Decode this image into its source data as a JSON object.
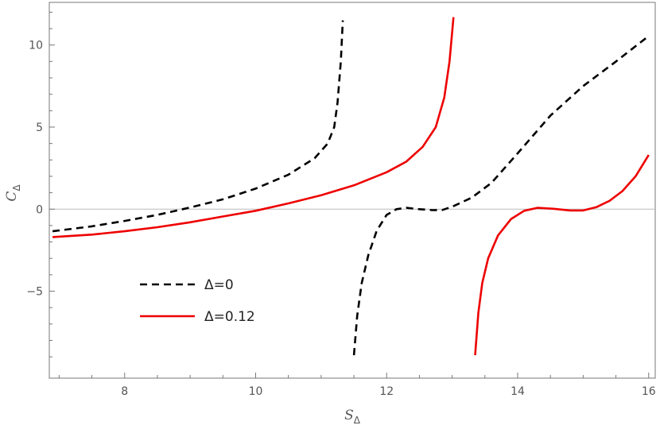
{
  "chart_data": {
    "type": "line",
    "xlabel": "S",
    "xlabel_sub": "Δ",
    "ylabel": "C",
    "ylabel_sub": "Δ",
    "xlim": [
      6.85,
      16.1
    ],
    "ylim": [
      -10.3,
      12.6
    ],
    "x_ticks": [
      8,
      10,
      12,
      14,
      16
    ],
    "y_ticks": [
      -5,
      0,
      5,
      10
    ],
    "zero_line": true,
    "frame": true,
    "legend_position": "lower-left",
    "series": [
      {
        "name": "Δ=0",
        "color": "#000000",
        "dash": "dashed",
        "segments": [
          [
            [
              6.9,
              -1.35
            ],
            [
              7.5,
              -1.05
            ],
            [
              8.0,
              -0.72
            ],
            [
              8.5,
              -0.35
            ],
            [
              9.0,
              0.1
            ],
            [
              9.5,
              0.6
            ],
            [
              10.0,
              1.25
            ],
            [
              10.5,
              2.1
            ],
            [
              10.9,
              3.1
            ],
            [
              11.1,
              4.0
            ],
            [
              11.2,
              5.0
            ],
            [
              11.25,
              6.5
            ],
            [
              11.3,
              9.0
            ],
            [
              11.33,
              11.5
            ]
          ],
          [
            [
              11.5,
              -8.9
            ],
            [
              11.55,
              -6.5
            ],
            [
              11.62,
              -4.5
            ],
            [
              11.72,
              -2.8
            ],
            [
              11.85,
              -1.3
            ],
            [
              12.0,
              -0.35
            ],
            [
              12.15,
              0.0
            ],
            [
              12.3,
              0.08
            ],
            [
              12.5,
              0.0
            ],
            [
              12.7,
              -0.06
            ],
            [
              12.85,
              -0.05
            ],
            [
              13.0,
              0.15
            ],
            [
              13.3,
              0.7
            ],
            [
              13.6,
              1.6
            ],
            [
              14.0,
              3.4
            ],
            [
              14.5,
              5.7
            ],
            [
              15.0,
              7.5
            ],
            [
              15.5,
              9.0
            ],
            [
              16.0,
              10.55
            ]
          ]
        ]
      },
      {
        "name": "Δ=0.12",
        "color": "#ee0000",
        "dash": "solid",
        "segments": [
          [
            [
              6.9,
              -1.7
            ],
            [
              7.5,
              -1.55
            ],
            [
              8.0,
              -1.35
            ],
            [
              8.5,
              -1.1
            ],
            [
              9.0,
              -0.8
            ],
            [
              9.5,
              -0.45
            ],
            [
              10.0,
              -0.1
            ],
            [
              10.5,
              0.35
            ],
            [
              11.0,
              0.85
            ],
            [
              11.5,
              1.45
            ],
            [
              12.0,
              2.25
            ],
            [
              12.3,
              2.9
            ],
            [
              12.55,
              3.8
            ],
            [
              12.75,
              5.0
            ],
            [
              12.88,
              6.8
            ],
            [
              12.96,
              9.0
            ],
            [
              13.02,
              11.7
            ]
          ],
          [
            [
              13.35,
              -8.9
            ],
            [
              13.4,
              -6.3
            ],
            [
              13.46,
              -4.5
            ],
            [
              13.55,
              -3.0
            ],
            [
              13.7,
              -1.6
            ],
            [
              13.9,
              -0.6
            ],
            [
              14.1,
              -0.1
            ],
            [
              14.3,
              0.08
            ],
            [
              14.55,
              0.02
            ],
            [
              14.8,
              -0.08
            ],
            [
              15.0,
              -0.08
            ],
            [
              15.2,
              0.12
            ],
            [
              15.4,
              0.5
            ],
            [
              15.6,
              1.1
            ],
            [
              15.8,
              2.0
            ],
            [
              16.0,
              3.3
            ]
          ]
        ]
      }
    ]
  }
}
